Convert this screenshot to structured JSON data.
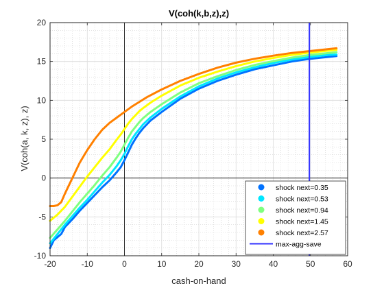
{
  "chart_data": {
    "type": "line",
    "title": "V(coh(k,b,z),z)",
    "xlabel": "cash-on-hand",
    "ylabel": "V(coh(a, k, z), z)",
    "xlim": [
      -20,
      60
    ],
    "ylim": [
      -10,
      20
    ],
    "xticks": [
      -20,
      -10,
      0,
      10,
      20,
      30,
      40,
      50,
      60
    ],
    "yticks": [
      -10,
      -5,
      0,
      5,
      10,
      15,
      20
    ],
    "grid": true,
    "minor_grid": true,
    "legend_position": "bottom-right",
    "series": [
      {
        "name": "shock next=0.35",
        "color": "#0072ff",
        "x": [
          -20,
          -19,
          -18,
          -17,
          -16,
          -14,
          -12,
          -10,
          -8,
          -6,
          -4,
          -2,
          -1,
          0,
          1,
          2,
          3,
          4,
          5,
          7,
          10,
          15,
          20,
          25,
          30,
          35,
          40,
          45,
          50,
          55,
          57
        ],
        "y": [
          -9.0,
          -8.0,
          -7.6,
          -7.2,
          -6.3,
          -5.3,
          -4.2,
          -3.2,
          -2.2,
          -1.2,
          -0.3,
          0.8,
          1.4,
          2.3,
          3.3,
          4.3,
          5.1,
          5.8,
          6.4,
          7.4,
          8.5,
          10.2,
          11.5,
          12.5,
          13.3,
          14.0,
          14.5,
          15.0,
          15.35,
          15.6,
          15.7
        ]
      },
      {
        "name": "shock next=0.53",
        "color": "#00e6ff",
        "x": [
          -20,
          -18,
          -16,
          -14,
          -12,
          -10,
          -8,
          -6,
          -4,
          -2,
          -1,
          0,
          1,
          2,
          3,
          4,
          5,
          7,
          10,
          15,
          20,
          25,
          30,
          35,
          40,
          45,
          50,
          55,
          57
        ],
        "y": [
          -8.4,
          -7.2,
          -6.0,
          -4.9,
          -3.8,
          -2.8,
          -1.7,
          -0.6,
          0.4,
          1.6,
          2.3,
          3.1,
          4.1,
          5.0,
          5.7,
          6.3,
          6.9,
          7.8,
          8.9,
          10.5,
          11.8,
          12.8,
          13.6,
          14.25,
          14.8,
          15.25,
          15.6,
          15.85,
          15.9
        ]
      },
      {
        "name": "shock next=0.94",
        "color": "#7fff7f",
        "x": [
          -20,
          -18,
          -16,
          -14,
          -12,
          -10,
          -8,
          -6,
          -4,
          -2,
          -1,
          0,
          1,
          2,
          3,
          4,
          5,
          7,
          10,
          15,
          20,
          25,
          30,
          35,
          40,
          45,
          50,
          55,
          57
        ],
        "y": [
          -7.7,
          -6.6,
          -5.5,
          -4.3,
          -3.1,
          -2.0,
          -0.9,
          0.3,
          1.4,
          2.7,
          3.4,
          4.3,
          5.2,
          6.0,
          6.6,
          7.2,
          7.7,
          8.5,
          9.5,
          11.0,
          12.2,
          13.1,
          13.9,
          14.55,
          15.05,
          15.5,
          15.85,
          16.1,
          16.2
        ]
      },
      {
        "name": "shock next=1.45",
        "color": "#ffff00",
        "x": [
          -20,
          -18,
          -16,
          -14,
          -12,
          -10,
          -8,
          -6,
          -4,
          -2,
          -1,
          0,
          1,
          2,
          3,
          4,
          5,
          7,
          10,
          15,
          20,
          25,
          30,
          35,
          40,
          45,
          50,
          55,
          57
        ],
        "y": [
          -5.5,
          -4.7,
          -3.7,
          -2.4,
          -1.1,
          0.2,
          1.4,
          2.6,
          3.7,
          5.0,
          5.6,
          6.3,
          7.0,
          7.6,
          8.1,
          8.6,
          9.0,
          9.7,
          10.6,
          11.9,
          12.9,
          13.7,
          14.4,
          15.0,
          15.45,
          15.85,
          16.15,
          16.4,
          16.5
        ]
      },
      {
        "name": "shock next=2.57",
        "color": "#ff8000",
        "x": [
          -20,
          -19,
          -18,
          -17,
          -16,
          -14,
          -12,
          -10,
          -8,
          -6,
          -4,
          -2,
          0,
          2,
          4,
          6,
          8,
          10,
          15,
          20,
          25,
          30,
          35,
          40,
          45,
          50,
          55,
          57
        ],
        "y": [
          -3.6,
          -3.6,
          -3.5,
          -3.1,
          -2.0,
          0.0,
          2.0,
          3.6,
          5.0,
          6.2,
          7.1,
          7.8,
          8.5,
          9.2,
          9.8,
          10.4,
          10.9,
          11.4,
          12.5,
          13.4,
          14.2,
          14.85,
          15.35,
          15.75,
          16.1,
          16.35,
          16.6,
          16.7
        ]
      }
    ],
    "vertical_lines": [
      {
        "name": "max-agg-save",
        "x": 49.7,
        "color": "#3333ff"
      }
    ]
  }
}
